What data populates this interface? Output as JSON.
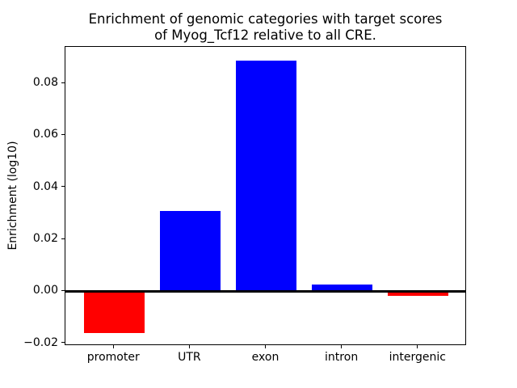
{
  "figure": {
    "title_line1": "Enrichment of genomic categories with target scores",
    "title_line2": "of Myog_Tcf12 relative to all CRE."
  },
  "chart_data": {
    "type": "bar",
    "title": "Enrichment of genomic categories with target scores\nof Myog_Tcf12 relative to all CRE.",
    "xlabel": "",
    "ylabel": "Enrichment (log10)",
    "categories": [
      "promoter",
      "UTR",
      "exon",
      "intron",
      "intergenic"
    ],
    "values": [
      -0.016,
      0.031,
      0.0886,
      0.0025,
      -0.0018
    ],
    "bar_colors": [
      "#ff0000",
      "#0000ff",
      "#0000ff",
      "#0000ff",
      "#ff0000"
    ],
    "positive_color": "#0000ff",
    "negative_color": "#ff0000",
    "ylim": [
      -0.021,
      0.094
    ],
    "yticks": [
      -0.02,
      0.0,
      0.02,
      0.04,
      0.06,
      0.08
    ],
    "ytick_labels": [
      "−0.02",
      "0.00",
      "0.02",
      "0.04",
      "0.06",
      "0.08"
    ],
    "bar_width_fraction": 0.8,
    "grid": false,
    "legend": null,
    "zero_line": true,
    "axis_color": "#000000",
    "background_color": "#ffffff"
  }
}
